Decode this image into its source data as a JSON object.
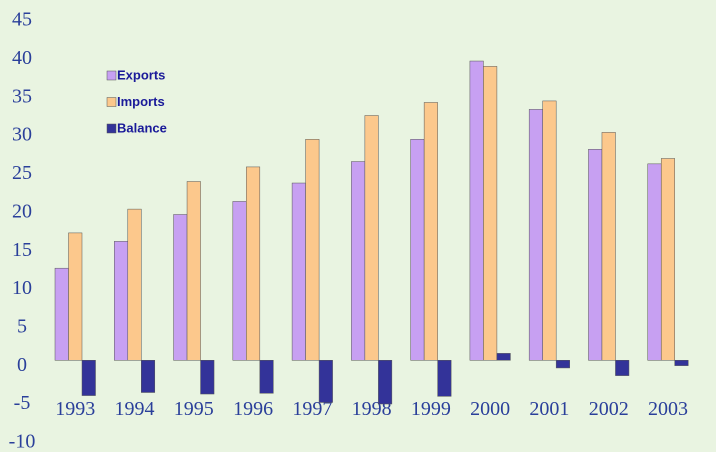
{
  "chart_data": {
    "type": "bar",
    "categories": [
      "1993",
      "1994",
      "1995",
      "1996",
      "1997",
      "1998",
      "1999",
      "2000",
      "2001",
      "2002",
      "2003"
    ],
    "series": [
      {
        "name": "Exports",
        "color": "#c7a0f2",
        "values": [
          12,
          15.5,
          19,
          20.7,
          23.1,
          25.9,
          28.8,
          39,
          32.7,
          27.5,
          25.6
        ]
      },
      {
        "name": "Imports",
        "color": "#fcc88c",
        "values": [
          16.6,
          19.7,
          23.3,
          25.2,
          28.8,
          31.9,
          33.6,
          38.3,
          33.8,
          29.7,
          26.3
        ]
      },
      {
        "name": "Balance",
        "color": "#333399",
        "values": [
          -4.6,
          -4.2,
          -4.4,
          -4.3,
          -5.5,
          -5.7,
          -4.7,
          0.9,
          -1.0,
          -2.0,
          -0.7
        ]
      }
    ],
    "ylim": [
      -10,
      45
    ],
    "yticks": [
      -10,
      -5,
      0,
      5,
      10,
      15,
      20,
      25,
      30,
      35,
      40,
      45
    ],
    "grid": false,
    "legend": "upper left"
  }
}
